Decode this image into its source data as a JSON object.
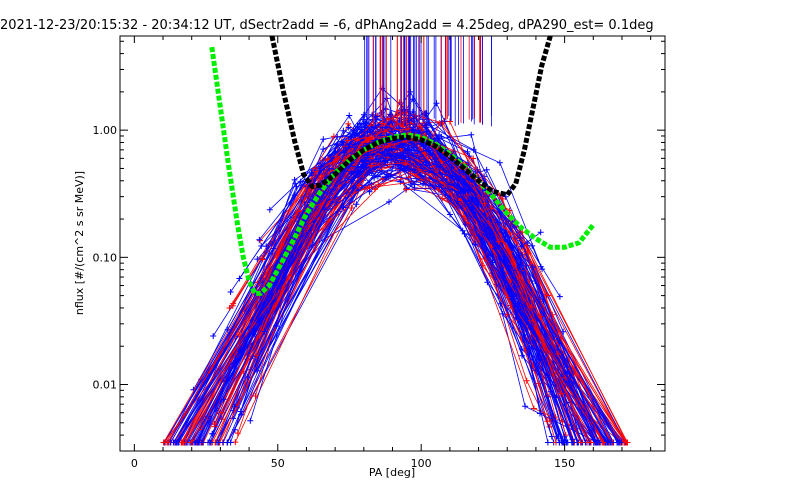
{
  "chart_data": {
    "type": "line",
    "title": "2021-12-23/20:15:32 - 20:34:12 UT, dSectr2add = -6, dPhAng2add = 4.25deg, dPA290_est=   0.1deg",
    "xlabel": "PA [deg]",
    "ylabel": "nflux [#/(cm^2 s sr MeV)]",
    "xlim": [
      -5,
      185
    ],
    "ylim": [
      0.003,
      5.5
    ],
    "yscale": "log",
    "x_ticks": [
      0,
      50,
      100,
      150
    ],
    "x_tick_labels": [
      "0",
      "50",
      "100",
      "150"
    ],
    "y_ticks": [
      0.01,
      0.1,
      1.0
    ],
    "y_tick_labels": [
      "0.01",
      "0.10",
      "1.00"
    ],
    "colors": {
      "red": "#ff0000",
      "blue": "#0000ff",
      "green": "#00ee00",
      "black": "#000000"
    },
    "series": [
      {
        "label_visible": false,
        "color": "green",
        "x": [
          27,
          30,
          33,
          36,
          38,
          40,
          42,
          44,
          47,
          50,
          55,
          60,
          65,
          70,
          75,
          80,
          85,
          90,
          95,
          100,
          105,
          110,
          115,
          120,
          125,
          130,
          135,
          140,
          145,
          150,
          155,
          160
        ],
        "y": [
          4.5,
          1.5,
          0.5,
          0.18,
          0.1,
          0.065,
          0.052,
          0.052,
          0.06,
          0.08,
          0.13,
          0.22,
          0.33,
          0.46,
          0.58,
          0.7,
          0.8,
          0.88,
          0.92,
          0.88,
          0.78,
          0.65,
          0.52,
          0.4,
          0.3,
          0.22,
          0.17,
          0.14,
          0.12,
          0.12,
          0.13,
          0.18
        ]
      },
      {
        "label_visible": false,
        "color": "black",
        "x": [
          48,
          52,
          56,
          59,
          62,
          65,
          70,
          75,
          80,
          85,
          90,
          95,
          100,
          105,
          110,
          115,
          120,
          125,
          130,
          133,
          136,
          139,
          142,
          145
        ],
        "y": [
          5.5,
          2.0,
          0.8,
          0.45,
          0.36,
          0.37,
          0.45,
          0.58,
          0.7,
          0.8,
          0.86,
          0.88,
          0.84,
          0.75,
          0.62,
          0.5,
          0.4,
          0.33,
          0.31,
          0.38,
          0.7,
          1.5,
          3.2,
          5.5
        ]
      }
    ]
  }
}
